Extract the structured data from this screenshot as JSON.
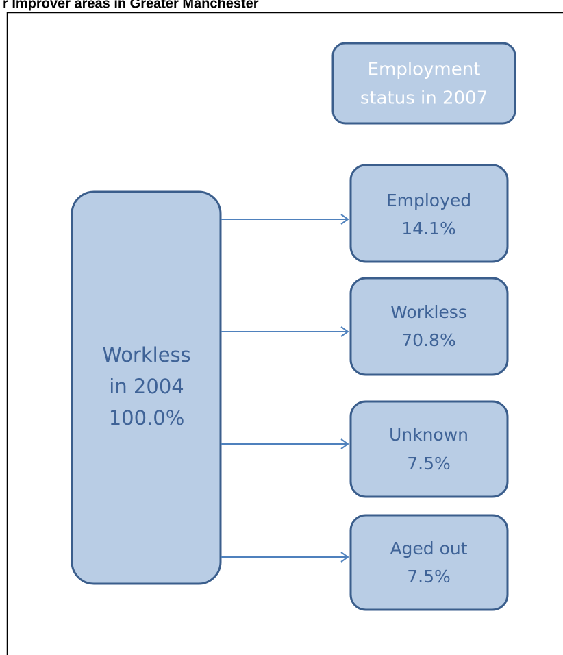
{
  "title": "r Improver areas in Greater Manchester",
  "header": {
    "lines": [
      "Employment",
      "status in 2007"
    ]
  },
  "source": {
    "lines": [
      "Workless",
      "in 2004",
      "100.0%"
    ]
  },
  "outcomes": [
    {
      "lines": [
        "Employed",
        "14.1%"
      ]
    },
    {
      "lines": [
        "Workless",
        "70.8%"
      ]
    },
    {
      "lines": [
        "Unknown",
        "7.5%"
      ]
    },
    {
      "lines": [
        "Aged out",
        "7.5%"
      ]
    }
  ]
}
